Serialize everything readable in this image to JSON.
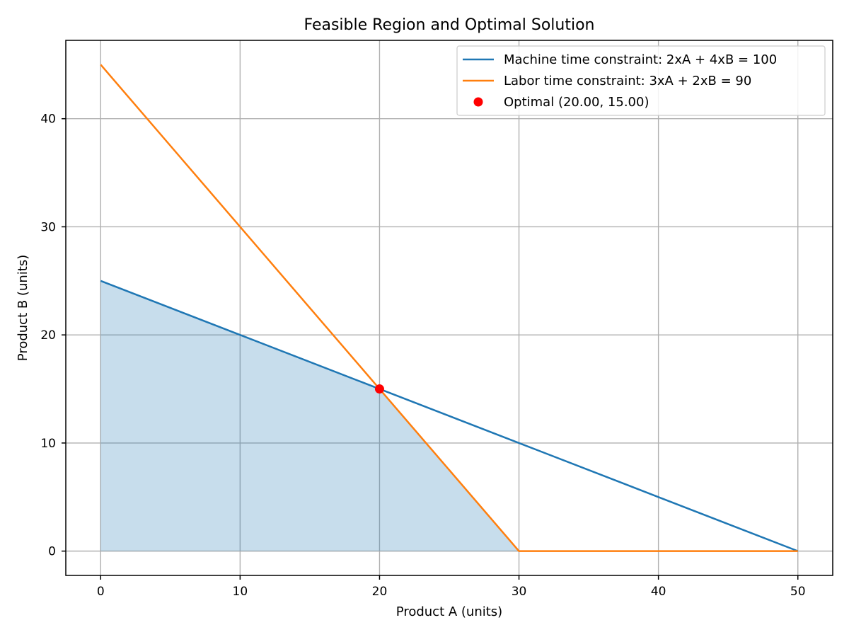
{
  "chart_data": {
    "type": "line",
    "title": "Feasible Region and Optimal Solution",
    "xlabel": "Product A (units)",
    "ylabel": "Product B (units)",
    "xlim": [
      -2.5,
      52.5
    ],
    "ylim": [
      -2.25,
      47.25
    ],
    "xticks": [
      0,
      10,
      20,
      30,
      40,
      50
    ],
    "yticks": [
      0,
      10,
      20,
      30,
      40
    ],
    "grid": true,
    "legend_position": "top-right",
    "series": [
      {
        "name": "Machine time constraint: 2xA + 4xB = 100",
        "color": "#1f77b4",
        "x": [
          0,
          10,
          20,
          30,
          40,
          50
        ],
        "y": [
          25,
          20,
          15,
          10,
          5,
          0
        ]
      },
      {
        "name": "Labor time constraint: 3xA + 2xB = 90",
        "color": "#ff7f0e",
        "x": [
          0,
          10,
          20,
          30,
          40,
          50
        ],
        "y": [
          45,
          30,
          15,
          0,
          0,
          0
        ]
      }
    ],
    "feasible_region": {
      "color": "#1f77b4",
      "opacity": 0.25,
      "x": [
        0,
        20,
        30
      ],
      "y_upper": [
        25,
        15,
        0
      ]
    },
    "optimal_point": {
      "name": "Optimal (20.00, 15.00)",
      "color": "#ff0000",
      "x": 20,
      "y": 15
    }
  }
}
